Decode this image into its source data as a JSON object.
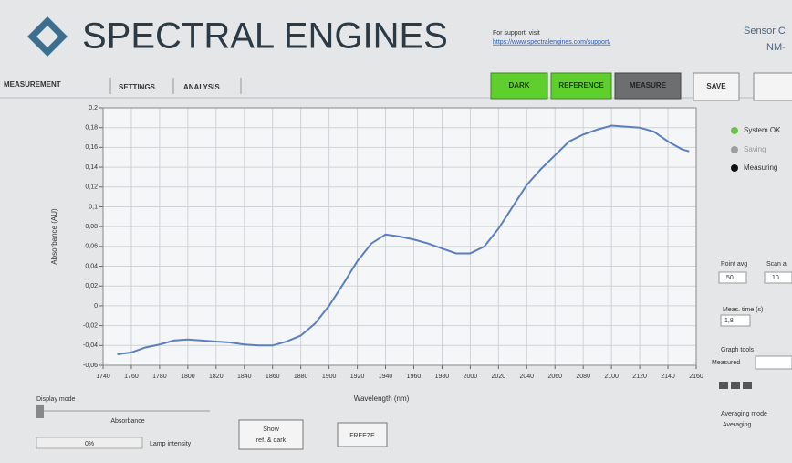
{
  "header": {
    "brand": "SPECTRAL ENGINES",
    "support_label": "For support, visit",
    "support_link": "https://www.spectralengines.com/support/",
    "sensor_line1": "Sensor C",
    "sensor_line2": "NM-"
  },
  "tabs": [
    "MEASUREMENT",
    "SETTINGS",
    "ANALYSIS"
  ],
  "buttons": {
    "dark": "DARK",
    "reference": "REFERENCE",
    "measure": "MEASURE",
    "save": "SAVE"
  },
  "status": [
    "System OK",
    "Saving",
    "Measuring"
  ],
  "controls": {
    "point_avg": "Point avg",
    "point_avg_value": "50",
    "scan_avg": "Scan a",
    "scan_avg_value": "10",
    "meas_time": "Meas. time (s)",
    "meas_time_value": "1,8",
    "graph_tools": "Graph tools",
    "measured": "Measured",
    "display_mode": "Display mode",
    "absorbance": "Absorbance",
    "lamp_value": "0%",
    "lamp_intensity": "Lamp intensity",
    "show_ref_line1": "Show",
    "show_ref_line2": "ref. & dark",
    "freeze": "FREEZE",
    "averaging_mode": "Averaging mode",
    "averaging": "Averaging"
  },
  "chart_data": {
    "type": "line",
    "x_label": "Wavelength (nm)",
    "y_label": "Absorbance (AU)",
    "color": "#5b7fc0",
    "grid": true,
    "x": [
      1750,
      1760,
      1770,
      1780,
      1790,
      1800,
      1810,
      1820,
      1830,
      1840,
      1850,
      1860,
      1870,
      1880,
      1890,
      1900,
      1910,
      1920,
      1930,
      1940,
      1950,
      1960,
      1970,
      1980,
      1990,
      2000,
      2010,
      2020,
      2030,
      2040,
      2050,
      2060,
      2070,
      2080,
      2090,
      2100,
      2110,
      2120,
      2130,
      2140,
      2145,
      2150,
      2155
    ],
    "values": [
      -0.049,
      -0.047,
      -0.042,
      -0.039,
      -0.035,
      -0.034,
      -0.035,
      -0.036,
      -0.037,
      -0.039,
      -0.04,
      -0.04,
      -0.036,
      -0.03,
      -0.018,
      0,
      0.022,
      0.045,
      0.063,
      0.072,
      0.07,
      0.067,
      0.063,
      0.058,
      0.053,
      0.053,
      0.06,
      0.078,
      0.1,
      0.122,
      0.138,
      0.152,
      0.166,
      0.173,
      0.178,
      0.182,
      0.181,
      0.18,
      0.176,
      0.166,
      0.162,
      0.158,
      0.156
    ],
    "xlim": [
      1740,
      2160
    ],
    "xticks": [
      1740,
      1760,
      1780,
      1800,
      1820,
      1840,
      1860,
      1880,
      1900,
      1920,
      1940,
      1960,
      1980,
      2000,
      2020,
      2040,
      2060,
      2080,
      2100,
      2120,
      2140,
      2160
    ],
    "ylim": [
      -0.06,
      0.2
    ],
    "yticks": [
      {
        "value": -0.06,
        "label": "-0,06"
      },
      {
        "value": -0.04,
        "label": "-0,04"
      },
      {
        "value": -0.02,
        "label": "-0,02"
      },
      0,
      {
        "value": 0.02,
        "label": "0,02"
      },
      {
        "value": 0.04,
        "label": "0,04"
      },
      {
        "value": 0.06,
        "label": "0,06"
      },
      {
        "value": 0.08,
        "label": "0,08"
      },
      {
        "value": 0.1,
        "label": "0,1"
      },
      {
        "value": 0.12,
        "label": "0,12"
      },
      {
        "value": 0.14,
        "label": "0,14"
      },
      {
        "value": 0.16,
        "label": "0,16"
      },
      {
        "value": 0.18,
        "label": "0,18"
      },
      {
        "value": 0.2,
        "label": "0,2"
      }
    ]
  }
}
